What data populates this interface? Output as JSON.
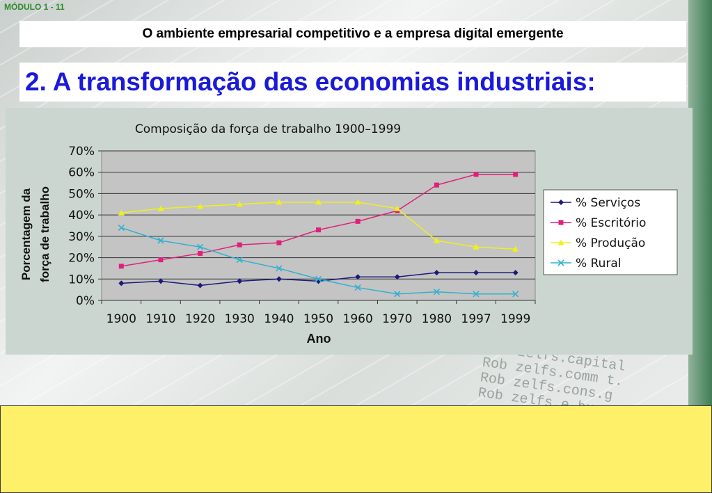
{
  "slide": {
    "module_label": "MÓDULO 1 - 11",
    "subtitle": "O ambiente empresarial competitivo e a empresa digital emergente",
    "heading": "2.  A transformação das economias industriais:",
    "background_text": [
      "Rob zelfs.capital",
      "Rob zelfs.comm t.",
      "Rob zelfs.cons.g",
      "Rob zelfs.e-bus"
    ],
    "colors": {
      "heading": "#1a1ad8",
      "module_label": "#2d8a2d",
      "yellow_box": "#fff06a",
      "chart_panel": "#cbd6d0",
      "plot_area": "#c4c4c4"
    }
  },
  "chart_data": {
    "type": "line",
    "title": "Composição da força de trabalho 1900–1999",
    "xlabel": "Ano",
    "ylabel": [
      "Porcentagem da",
      "força de trabalho"
    ],
    "categories": [
      "1900",
      "1910",
      "1920",
      "1930",
      "1940",
      "1950",
      "1960",
      "1970",
      "1980",
      "1997",
      "1999"
    ],
    "yticks": [
      "0%",
      "10%",
      "20%",
      "30%",
      "40%",
      "50%",
      "60%",
      "70%"
    ],
    "ylim": [
      0,
      70
    ],
    "grid": true,
    "legend_position": "right",
    "series": [
      {
        "name": "% Serviços",
        "color": "#1a1a7a",
        "marker": "diamond",
        "values": [
          8,
          9,
          7,
          9,
          10,
          9,
          11,
          11,
          13,
          13,
          13
        ]
      },
      {
        "name": "% Escritório",
        "color": "#e0207a",
        "marker": "square",
        "values": [
          16,
          19,
          22,
          26,
          27,
          33,
          37,
          42,
          54,
          59,
          59
        ]
      },
      {
        "name": "% Produção",
        "color": "#f0f01a",
        "marker": "triangle",
        "values": [
          41,
          43,
          44,
          45,
          46,
          46,
          46,
          43,
          28,
          25,
          24
        ]
      },
      {
        "name": "% Rural",
        "color": "#30b0d0",
        "marker": "x",
        "values": [
          34,
          28,
          25,
          19,
          15,
          10,
          6,
          3,
          4,
          3,
          3
        ]
      }
    ]
  }
}
